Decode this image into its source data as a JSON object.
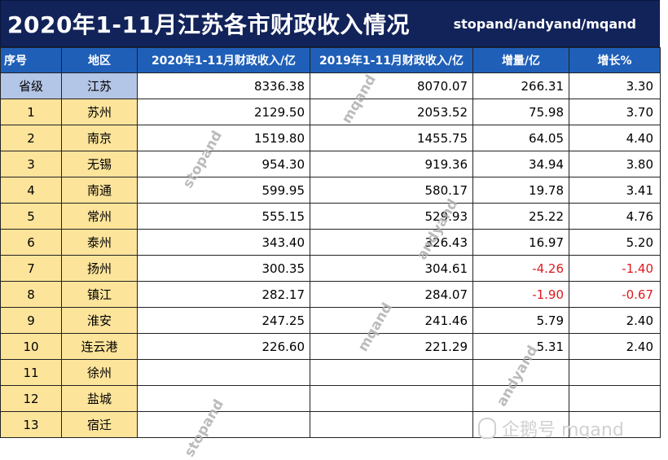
{
  "title": "2020年1-11月江苏各市财政收入情况",
  "subtitle": "stopand/andyand/mqand",
  "headers": [
    "序号",
    "地区",
    "2020年1-11月财政收入/亿",
    "2019年1-11月财政收入/亿",
    "增量/亿",
    "增长%"
  ],
  "rows": [
    {
      "no": "省级",
      "region": "江苏",
      "y2020": "8336.38",
      "y2019": "8070.07",
      "inc": "266.31",
      "pct": "3.30",
      "neg": false
    },
    {
      "no": "1",
      "region": "苏州",
      "y2020": "2129.50",
      "y2019": "2053.52",
      "inc": "75.98",
      "pct": "3.70",
      "neg": false
    },
    {
      "no": "2",
      "region": "南京",
      "y2020": "1519.80",
      "y2019": "1455.75",
      "inc": "64.05",
      "pct": "4.40",
      "neg": false
    },
    {
      "no": "3",
      "region": "无锡",
      "y2020": "954.30",
      "y2019": "919.36",
      "inc": "34.94",
      "pct": "3.80",
      "neg": false
    },
    {
      "no": "4",
      "region": "南通",
      "y2020": "599.95",
      "y2019": "580.17",
      "inc": "19.78",
      "pct": "3.41",
      "neg": false
    },
    {
      "no": "5",
      "region": "常州",
      "y2020": "555.15",
      "y2019": "529.93",
      "inc": "25.22",
      "pct": "4.76",
      "neg": false
    },
    {
      "no": "6",
      "region": "泰州",
      "y2020": "343.40",
      "y2019": "326.43",
      "inc": "16.97",
      "pct": "5.20",
      "neg": false
    },
    {
      "no": "7",
      "region": "扬州",
      "y2020": "300.35",
      "y2019": "304.61",
      "inc": "-4.26",
      "pct": "-1.40",
      "neg": true
    },
    {
      "no": "8",
      "region": "镇江",
      "y2020": "282.17",
      "y2019": "284.07",
      "inc": "-1.90",
      "pct": "-0.67",
      "neg": true
    },
    {
      "no": "9",
      "region": "淮安",
      "y2020": "247.25",
      "y2019": "241.46",
      "inc": "5.79",
      "pct": "2.40",
      "neg": false
    },
    {
      "no": "10",
      "region": "连云港",
      "y2020": "226.60",
      "y2019": "221.29",
      "inc": "5.31",
      "pct": "2.40",
      "neg": false
    },
    {
      "no": "11",
      "region": "徐州",
      "y2020": "",
      "y2019": "",
      "inc": "",
      "pct": "",
      "neg": false
    },
    {
      "no": "12",
      "region": "盐城",
      "y2020": "",
      "y2019": "",
      "inc": "",
      "pct": "",
      "neg": false
    },
    {
      "no": "13",
      "region": "宿迁",
      "y2020": "",
      "y2019": "",
      "inc": "",
      "pct": "",
      "neg": false
    }
  ],
  "watermarks": [
    "mqand",
    "stopand",
    "andyand",
    "mqand",
    "andyand",
    "stopand"
  ],
  "brand": "企鹅号 mqand",
  "colors": {
    "title_bg": "#12235a",
    "header_bg": "#1f5fb8",
    "cell_yellow": "#fde49b",
    "province_blue": "#b4c6e7",
    "negative": "#e0191e"
  }
}
